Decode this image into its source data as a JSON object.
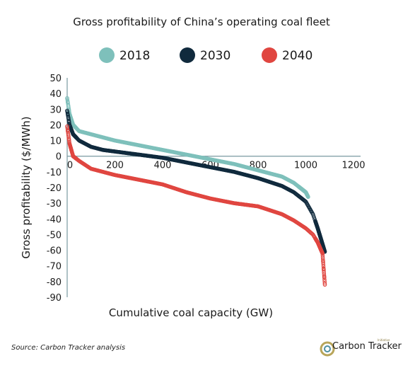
{
  "chart_data": {
    "type": "scatter",
    "title": "Gross profitability of China’s operating coal fleet",
    "xlabel": "Cumulative coal capacity (GW)",
    "ylabel": "Gross profitability ($/MWh)",
    "xlim": [
      0,
      1200
    ],
    "ylim": [
      -90,
      50
    ],
    "xticks": [
      "0",
      "200",
      "400",
      "600",
      "800",
      "1000",
      "1200"
    ],
    "yticks": [
      "50",
      "40",
      "30",
      "20",
      "10",
      "0",
      "-10",
      "-20",
      "-30",
      "-40",
      "-50",
      "-60",
      "-70",
      "-80",
      "-90"
    ],
    "legend_position": "top",
    "series": [
      {
        "name": "2018",
        "color": "#7ec0bb",
        "x": [
          0,
          10,
          25,
          50,
          100,
          150,
          200,
          300,
          400,
          500,
          600,
          700,
          800,
          900,
          950,
          1000,
          1010
        ],
        "y": [
          37,
          27,
          20,
          16,
          14,
          12,
          10,
          7,
          4,
          1,
          -2,
          -5,
          -9,
          -13,
          -17,
          -23,
          -26
        ]
      },
      {
        "name": "2030",
        "color": "#102a3d",
        "x": [
          0,
          10,
          25,
          50,
          100,
          150,
          200,
          300,
          400,
          500,
          600,
          700,
          800,
          900,
          950,
          1000,
          1030,
          1050,
          1070,
          1080
        ],
        "y": [
          29,
          20,
          14,
          10,
          6,
          4,
          3,
          1,
          -1,
          -4,
          -7,
          -10,
          -14,
          -19,
          -23,
          -29,
          -37,
          -46,
          -56,
          -61
        ]
      },
      {
        "name": "2040",
        "color": "#e04640",
        "x": [
          0,
          10,
          25,
          50,
          100,
          150,
          200,
          300,
          400,
          500,
          600,
          700,
          800,
          900,
          950,
          1000,
          1030,
          1050,
          1070,
          1080
        ],
        "y": [
          19,
          8,
          0,
          -3,
          -8,
          -10,
          -12,
          -15,
          -18,
          -23,
          -27,
          -30,
          -32,
          -37,
          -41,
          -46,
          -50,
          -55,
          -62,
          -82
        ]
      }
    ]
  },
  "source": "Source: Carbon Tracker analysis",
  "logo": {
    "text": "Carbon Tracker",
    "sub": "Initiative"
  }
}
